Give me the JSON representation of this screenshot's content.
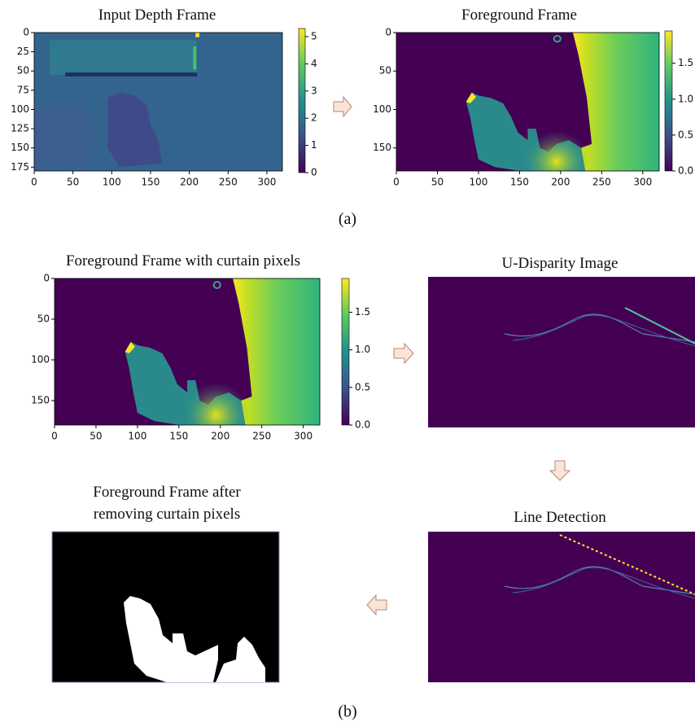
{
  "figure": {
    "panels": [
      {
        "title": "Input Depth Frame",
        "xlim": [
          0,
          320
        ],
        "ylim": [
          0,
          180
        ],
        "xticks": [
          0,
          50,
          100,
          150,
          200,
          250,
          300
        ],
        "yticks": [
          0,
          25,
          50,
          75,
          100,
          125,
          150,
          175
        ],
        "clim": [
          0,
          5.3
        ],
        "cticks": [
          0,
          1,
          2,
          3,
          4,
          5
        ]
      },
      {
        "title": "Foreground Frame",
        "xlim": [
          0,
          320
        ],
        "ylim": [
          0,
          180
        ],
        "xticks": [
          0,
          50,
          100,
          150,
          200,
          250,
          300
        ],
        "yticks": [
          0,
          50,
          100,
          150
        ],
        "clim": [
          0,
          1.95
        ],
        "cticks": [
          {
            "value": 0,
            "label": "0.0"
          },
          {
            "value": 0.5,
            "label": "0.5"
          },
          {
            "value": 1,
            "label": "1.0"
          },
          {
            "value": 1.5,
            "label": "1.5"
          }
        ]
      },
      {
        "title": "Foreground Frame with curtain pixels",
        "xlim": [
          0,
          320
        ],
        "ylim": [
          0,
          180
        ],
        "xticks": [
          0,
          50,
          100,
          150,
          200,
          250,
          300
        ],
        "yticks": [
          0,
          50,
          100,
          150
        ],
        "clim": [
          0,
          1.95
        ],
        "cticks": [
          {
            "value": 0,
            "label": "0.0"
          },
          {
            "value": 0.5,
            "label": "0.5"
          },
          {
            "value": 1,
            "label": "1.0"
          },
          {
            "value": 1.5,
            "label": "1.5"
          }
        ]
      }
    ],
    "images": [
      {
        "title": "U-Disparity Image"
      },
      {
        "title": "Line Detection"
      },
      {
        "title": [
          "Foreground Frame after",
          "removing curtain pixels"
        ]
      }
    ],
    "captions": [
      "(a)",
      "(b)"
    ]
  }
}
